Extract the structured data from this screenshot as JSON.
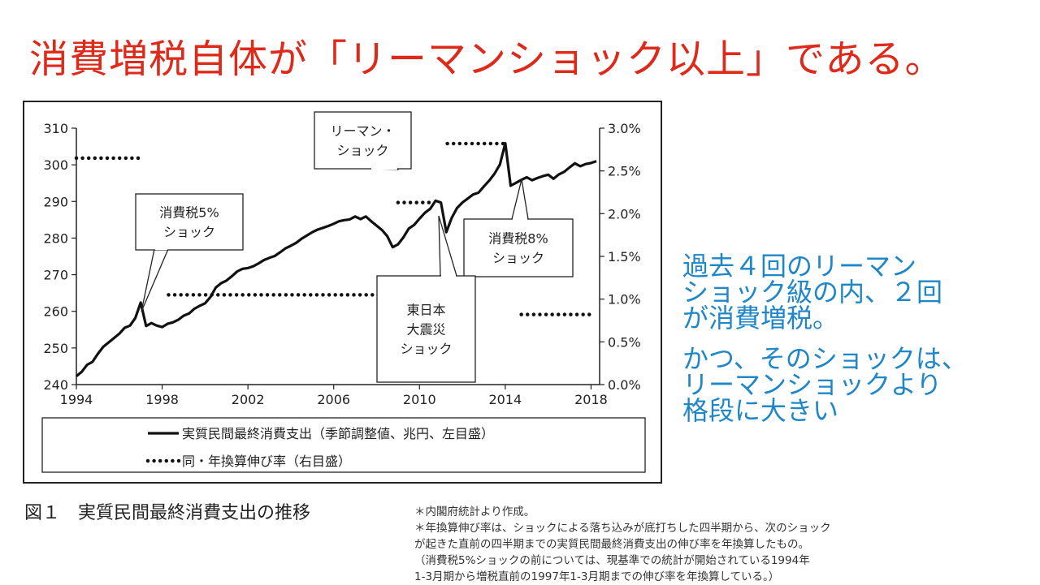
{
  "headline": "消費増税自体が「リーマンショック以上」である。",
  "side_note": {
    "para1": "過去４回のリーマン\nショック級の内、２回\nが消費増税。",
    "para2": "かつ、そのショックは、\nリーマンショックより\n格段に大きい"
  },
  "figure": {
    "caption": "図１　実質民間最終消費支出の推移",
    "notes": [
      "＊内閣府統計より作成。",
      "＊年換算伸び率は、ショックによる落ち込みが底打ちした四半期から、次のショック",
      "が起きた直前の四半期までの実質民間最終消費支出の伸び率を年換算したもの。",
      "（消費税5%ショックの前については、現基準での統計が開始されている1994年",
      "1-3月期から増税直前の1997年1-3月期までの伸び率を年換算している。）"
    ]
  },
  "chart_data": {
    "type": "line",
    "xlim": [
      1994,
      2018.4
    ],
    "x_ticks": [
      "1994",
      "1998",
      "2002",
      "2006",
      "2010",
      "2014",
      "2018"
    ],
    "y_left": {
      "lim": [
        240,
        310
      ],
      "ticks": [
        "240",
        "250",
        "260",
        "270",
        "280",
        "290",
        "300",
        "310"
      ]
    },
    "y_right": {
      "lim": [
        0,
        3.0
      ],
      "ticks": [
        "0.0%",
        "0.5%",
        "1.0%",
        "1.5%",
        "2.0%",
        "2.5%",
        "3.0%"
      ]
    },
    "series": [
      {
        "name": "実質民間最終消費支出（季節調整値、兆円、左目盛）",
        "axis": "left",
        "style": "solid",
        "x": [
          1994.0,
          1994.25,
          1994.5,
          1994.75,
          1995.0,
          1995.25,
          1995.5,
          1995.75,
          1996.0,
          1996.25,
          1996.5,
          1996.75,
          1997.0,
          1997.25,
          1997.5,
          1997.75,
          1998.0,
          1998.25,
          1998.5,
          1998.75,
          1999.0,
          1999.25,
          1999.5,
          1999.75,
          2000.0,
          2000.25,
          2000.5,
          2000.75,
          2001.0,
          2001.25,
          2001.5,
          2001.75,
          2002.0,
          2002.25,
          2002.5,
          2002.75,
          2003.0,
          2003.25,
          2003.5,
          2003.75,
          2004.0,
          2004.25,
          2004.5,
          2004.75,
          2005.0,
          2005.25,
          2005.5,
          2005.75,
          2006.0,
          2006.25,
          2006.5,
          2006.75,
          2007.0,
          2007.25,
          2007.5,
          2007.75,
          2008.0,
          2008.25,
          2008.5,
          2008.75,
          2009.0,
          2009.25,
          2009.5,
          2009.75,
          2010.0,
          2010.25,
          2010.5,
          2010.75,
          2011.0,
          2011.25,
          2011.5,
          2011.75,
          2012.0,
          2012.25,
          2012.5,
          2012.75,
          2013.0,
          2013.25,
          2013.5,
          2013.75,
          2014.0,
          2014.25,
          2014.5,
          2014.75,
          2015.0,
          2015.25,
          2015.5,
          2015.75,
          2016.0,
          2016.25,
          2016.5,
          2016.75,
          2017.0,
          2017.25,
          2017.5,
          2017.75,
          2018.0,
          2018.25
        ],
        "values": [
          242.3,
          243.5,
          245.4,
          246.2,
          248.4,
          250.3,
          251.5,
          252.7,
          253.9,
          255.5,
          256.1,
          258.2,
          262.4,
          256.0,
          256.8,
          256.1,
          255.7,
          256.6,
          257.0,
          257.7,
          258.8,
          259.4,
          260.7,
          261.5,
          262.2,
          263.9,
          266.5,
          267.7,
          268.4,
          269.6,
          270.9,
          271.6,
          271.8,
          272.3,
          273.1,
          274.0,
          274.6,
          275.1,
          276.1,
          277.2,
          277.9,
          278.7,
          279.8,
          280.7,
          281.6,
          282.3,
          282.8,
          283.3,
          283.9,
          284.6,
          284.9,
          285.1,
          285.9,
          285.2,
          285.9,
          284.6,
          283.4,
          282.2,
          280.5,
          277.5,
          278.3,
          280.2,
          282.6,
          283.6,
          285.3,
          286.9,
          288.0,
          290.2,
          289.7,
          281.6,
          285.5,
          288.2,
          289.7,
          290.8,
          291.9,
          292.4,
          294.1,
          295.7,
          297.6,
          300.1,
          305.9,
          294.3,
          295.1,
          295.9,
          296.6,
          295.8,
          296.4,
          296.9,
          297.3,
          296.2,
          297.4,
          298.1,
          299.3,
          300.4,
          299.6,
          300.2,
          300.5,
          301.0
        ]
      },
      {
        "name": "同・年換算伸び率（右目盛）",
        "axis": "right",
        "style": "dotted",
        "segments": [
          {
            "x": [
              1994.0,
              1997.0
            ],
            "y": 2.65
          },
          {
            "x": [
              1998.3,
              2008.5
            ],
            "y": 1.05
          },
          {
            "x": [
              2009.0,
              2010.7
            ],
            "y": 2.13
          },
          {
            "x": [
              2011.3,
              2014.0
            ],
            "y": 2.82
          },
          {
            "x": [
              2014.75,
              2018.0
            ],
            "y": 0.82
          }
        ]
      }
    ],
    "annotations": [
      {
        "lines": [
          "リーマン・",
          "ショック"
        ]
      },
      {
        "lines": [
          "消費税5%",
          "ショック"
        ]
      },
      {
        "lines": [
          "消費税8%",
          "ショック"
        ]
      },
      {
        "lines": [
          "東日本",
          "大震災",
          "ショック"
        ]
      }
    ],
    "legend": {
      "placement": "bottom",
      "items": [
        {
          "style": "solid",
          "label": "実質民間最終消費支出（季節調整値、兆円、左目盛）"
        },
        {
          "style": "dotted",
          "label": "同・年換算伸び率（右目盛）"
        }
      ]
    }
  }
}
